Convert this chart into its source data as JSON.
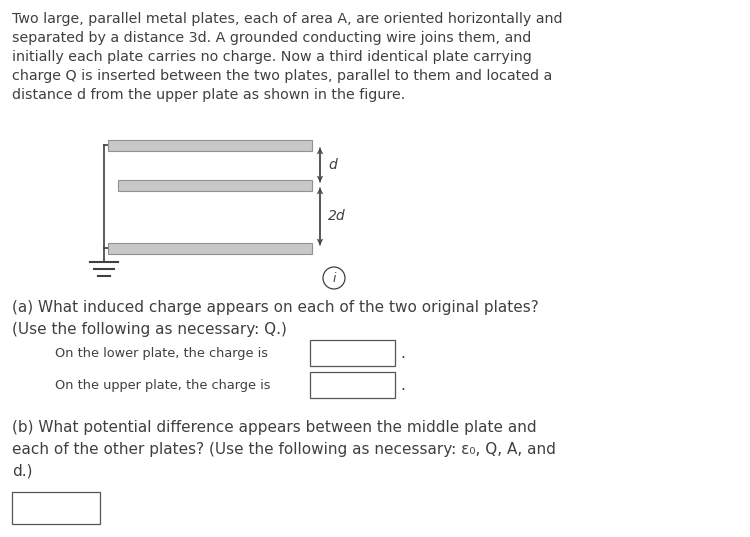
{
  "bg_color": "#ffffff",
  "text_color": "#404040",
  "intro_lines": [
    "Two large, parallel metal plates, each of area A, are oriented horizontally and",
    "separated by a distance 3d. A grounded conducting wire joins them, and",
    "initially each plate carries no charge. Now a third identical plate carrying",
    "charge Q is inserted between the two plates, parallel to them and located a",
    "distance d from the upper plate as shown in the figure."
  ],
  "plate_face": "#c8c8c8",
  "plate_edge": "#909090",
  "plate_lw": 0.8,
  "wire_color": "#404040",
  "arrow_color": "#404040",
  "box_edge": "#555555",
  "box_face": "#ffffff",
  "part_a_lines": [
    "(a) What induced charge appears on each of the two original plates?",
    "(Use the following as necessary: Q.)"
  ],
  "lower_label": "On the lower plate, the charge is",
  "upper_label": "On the upper plate, the charge is",
  "part_b_lines": [
    "(b) What potential difference appears between the middle plate and",
    "each of the other plates? (Use the following as necessary: ε₀, Q, A, and",
    "d.)"
  ]
}
